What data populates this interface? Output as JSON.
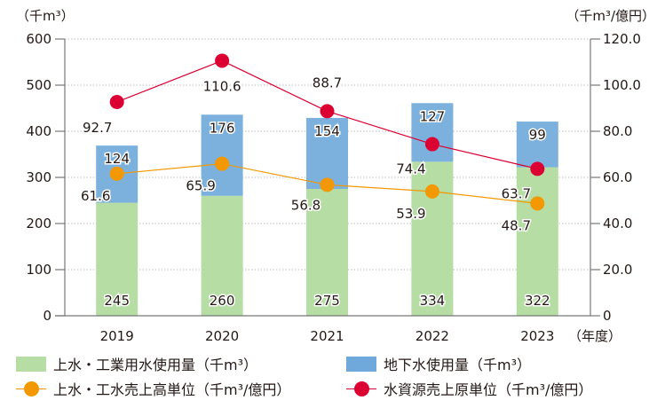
{
  "chart_data": {
    "type": "bar",
    "title": "",
    "categories": [
      "2019",
      "2020",
      "2021",
      "2022",
      "2023"
    ],
    "xlabel": "（年度）",
    "left_axis": {
      "label": "（千m³）",
      "ylim": [
        0,
        600
      ],
      "ticks": [
        "0",
        "100",
        "200",
        "300",
        "400",
        "500",
        "600"
      ]
    },
    "right_axis": {
      "label": "（千m³/億円）",
      "ylim": [
        0,
        120
      ],
      "ticks": [
        "0",
        "20.0",
        "40.0",
        "60.0",
        "80.0",
        "100.0",
        "120.0"
      ]
    },
    "grid": true,
    "series": [
      {
        "name": "上水・工業用水使用量（千m³）",
        "kind": "bar",
        "stack": "water",
        "axis": "left",
        "color": "#b5dda4",
        "values": [
          245,
          260,
          275,
          334,
          322
        ],
        "labels": [
          "245",
          "260",
          "275",
          "334",
          "322"
        ]
      },
      {
        "name": "地下水使用量（千m³）",
        "kind": "bar",
        "stack": "water",
        "axis": "left",
        "color": "#7cb1de",
        "values": [
          124,
          176,
          154,
          127,
          99
        ],
        "labels": [
          "124",
          "176",
          "154",
          "127",
          "99"
        ]
      },
      {
        "name": "上水・工水売上高単位（千m³/億円）",
        "kind": "line",
        "axis": "right",
        "color": "#f39800",
        "values": [
          61.6,
          65.9,
          56.8,
          53.9,
          48.7
        ],
        "labels": [
          "61.6",
          "65.9",
          "56.8",
          "53.9",
          "48.7"
        ]
      },
      {
        "name": "水資源売上原単位（千m³/億円）",
        "kind": "line",
        "axis": "right",
        "color": "#dc0032",
        "values": [
          92.7,
          110.6,
          88.7,
          74.4,
          63.7
        ],
        "labels": [
          "92.7",
          "110.6",
          "88.7",
          "74.4",
          "63.7"
        ]
      }
    ],
    "legend": {
      "placement": "bottom",
      "items": [
        {
          "label": "上水・工業用水使用量（千m³）",
          "symbol": "swatch",
          "color": "#b5dda4"
        },
        {
          "label": "地下水使用量（千m³）",
          "symbol": "swatch",
          "color": "#7cb1de"
        },
        {
          "label": "上水・工水売上高単位（千m³/億円）",
          "symbol": "line-dot",
          "color": "#f39800"
        },
        {
          "label": "水資源売上原単位（千m³/億円）",
          "symbol": "line-dot",
          "color": "#dc0032"
        }
      ]
    }
  }
}
